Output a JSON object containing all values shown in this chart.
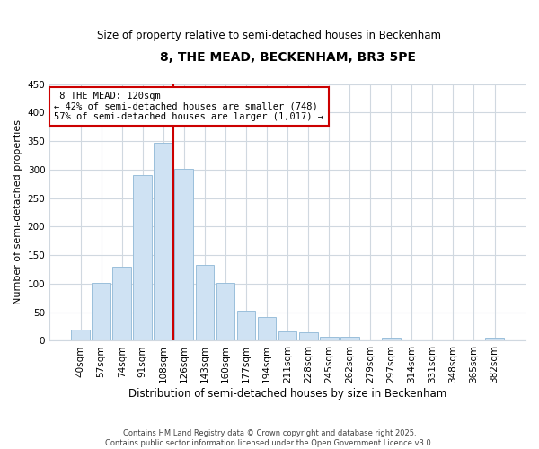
{
  "title": "8, THE MEAD, BECKENHAM, BR3 5PE",
  "subtitle": "Size of property relative to semi-detached houses in Beckenham",
  "xlabel": "Distribution of semi-detached houses by size in Beckenham",
  "ylabel": "Number of semi-detached properties",
  "footnote1": "Contains HM Land Registry data © Crown copyright and database right 2025.",
  "footnote2": "Contains public sector information licensed under the Open Government Licence v3.0.",
  "categories": [
    "40sqm",
    "57sqm",
    "74sqm",
    "91sqm",
    "108sqm",
    "126sqm",
    "143sqm",
    "160sqm",
    "177sqm",
    "194sqm",
    "211sqm",
    "228sqm",
    "245sqm",
    "262sqm",
    "279sqm",
    "297sqm",
    "314sqm",
    "331sqm",
    "348sqm",
    "365sqm",
    "382sqm"
  ],
  "values": [
    20,
    102,
    130,
    291,
    347,
    302,
    133,
    101,
    53,
    41,
    16,
    15,
    7,
    7,
    1,
    5,
    0,
    0,
    0,
    0,
    5
  ],
  "bar_color": "#cfe2f3",
  "bar_edge_color": "#9abfdb",
  "vline_color": "#cc0000",
  "vline_pos": 4.5,
  "annotation_title": "8 THE MEAD: 120sqm",
  "annotation_line1": "← 42% of semi-detached houses are smaller (748)",
  "annotation_line2": "57% of semi-detached houses are larger (1,017) →",
  "annotation_box_color": "#cc0000",
  "bg_color": "#ffffff",
  "grid_color": "#d0d8e0",
  "ylim": [
    0,
    450
  ],
  "yticks": [
    0,
    50,
    100,
    150,
    200,
    250,
    300,
    350,
    400,
    450
  ],
  "figsize": [
    6.0,
    5.0
  ],
  "dpi": 100
}
